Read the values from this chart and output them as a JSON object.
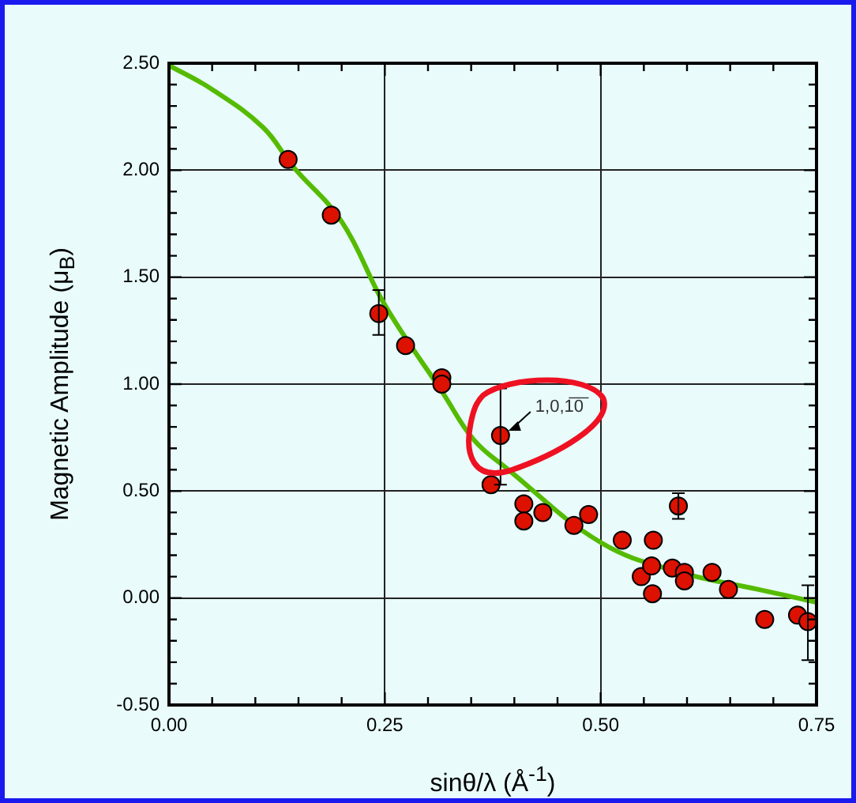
{
  "chart_data": {
    "type": "scatter",
    "xlabel": "sinθ/λ  (Å$^{-1}$)",
    "ylabel": "Magnetic Amplitude (μ$_{B}$)",
    "xlim": [
      0,
      0.75
    ],
    "xticks": [
      {
        "value": 0,
        "label": "0.00"
      },
      {
        "value": 0.05,
        "label": null
      },
      {
        "value": 0.1,
        "label": null
      },
      {
        "value": 0.15,
        "label": null
      },
      {
        "value": 0.2,
        "label": null
      },
      {
        "value": 0.25,
        "label": "0.25"
      },
      {
        "value": 0.3,
        "label": null
      },
      {
        "value": 0.35,
        "label": null
      },
      {
        "value": 0.4,
        "label": null
      },
      {
        "value": 0.45,
        "label": null
      },
      {
        "value": 0.5,
        "label": "0.50"
      },
      {
        "value": 0.55,
        "label": null
      },
      {
        "value": 0.6,
        "label": null
      },
      {
        "value": 0.65,
        "label": null
      },
      {
        "value": 0.7,
        "label": null
      },
      {
        "value": 0.75,
        "label": "0.75"
      }
    ],
    "ylim": [
      -0.5,
      2.5
    ],
    "yticks": [
      {
        "value": -0.5,
        "label": "-0.50"
      },
      {
        "value": -0.4,
        "label": null
      },
      {
        "value": -0.3,
        "label": null
      },
      {
        "value": -0.2,
        "label": null
      },
      {
        "value": -0.1,
        "label": null
      },
      {
        "value": 0,
        "label": "0.00"
      },
      {
        "value": 0.1,
        "label": null
      },
      {
        "value": 0.2,
        "label": null
      },
      {
        "value": 0.3,
        "label": null
      },
      {
        "value": 0.4,
        "label": null
      },
      {
        "value": 0.5,
        "label": "0.50"
      },
      {
        "value": 0.6,
        "label": null
      },
      {
        "value": 0.7,
        "label": null
      },
      {
        "value": 0.8,
        "label": null
      },
      {
        "value": 0.9,
        "label": null
      },
      {
        "value": 1,
        "label": "1.00"
      },
      {
        "value": 1.1,
        "label": null
      },
      {
        "value": 1.2,
        "label": null
      },
      {
        "value": 1.3,
        "label": null
      },
      {
        "value": 1.4,
        "label": null
      },
      {
        "value": 1.5,
        "label": "1.50"
      },
      {
        "value": 1.6,
        "label": null
      },
      {
        "value": 1.7,
        "label": null
      },
      {
        "value": 1.8,
        "label": null
      },
      {
        "value": 1.9,
        "label": null
      },
      {
        "value": 2,
        "label": "2.00"
      },
      {
        "value": 2.1,
        "label": null
      },
      {
        "value": 2.2,
        "label": null
      },
      {
        "value": 2.3,
        "label": null
      },
      {
        "value": 2.4,
        "label": null
      },
      {
        "value": 2.5,
        "label": "2.50"
      }
    ],
    "grid": true,
    "legend": false,
    "series": [
      {
        "color": "#dd1100",
        "marker": "circle",
        "x": [
          0.138,
          0.188,
          0.243,
          0.274,
          0.316,
          0.316,
          0.373,
          0.384,
          0.411,
          0.411,
          0.433,
          0.469,
          0.486,
          0.525,
          0.561,
          0.547,
          0.559,
          0.56,
          0.59,
          0.583,
          0.597,
          0.597,
          0.629,
          0.648,
          0.69,
          0.728,
          0.74
        ],
        "values": [
          2.05,
          1.79,
          1.33,
          1.18,
          1.03,
          1.0,
          0.53,
          0.76,
          0.44,
          0.36,
          0.4,
          0.34,
          0.39,
          0.27,
          0.27,
          0.1,
          0.15,
          0.02,
          0.43,
          0.14,
          0.12,
          0.08,
          0.12,
          0.04,
          -0.1,
          -0.08,
          -0.11
        ],
        "errors": [
          null,
          null,
          [
            1.23,
            1.44
          ],
          null,
          null,
          null,
          null,
          [
            0.53,
            0.98
          ],
          null,
          null,
          null,
          null,
          null,
          null,
          null,
          null,
          null,
          null,
          [
            0.37,
            0.49
          ],
          null,
          null,
          null,
          null,
          null,
          null,
          null,
          [
            -0.29,
            0.06
          ]
        ]
      },
      {
        "type": "line",
        "color": "#55bb00",
        "marker": "none",
        "line_style": "solid",
        "x": [
          0,
          0.049,
          0.109,
          0.143,
          0.2,
          0.25,
          0.317,
          0.353,
          0.39,
          0.5,
          0.592,
          0.683,
          0.75
        ],
        "values": [
          2.49,
          2.38,
          2.2,
          2.02,
          1.76,
          1.37,
          0.96,
          0.74,
          0.61,
          0.26,
          0.12,
          0.04,
          -0.02
        ]
      }
    ],
    "annotations": [
      {
        "text": "1,0,1̅0̅",
        "x": 0.384,
        "y": 0.76
      }
    ]
  }
}
